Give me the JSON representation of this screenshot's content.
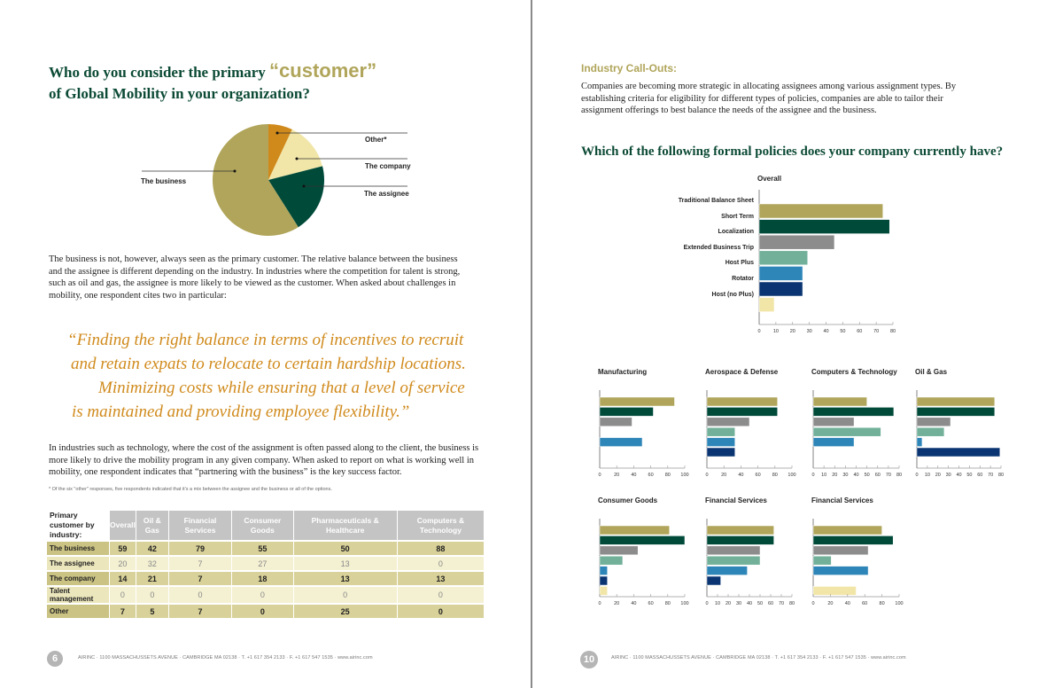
{
  "left_page": {
    "title_pre": "Who do you consider the primary",
    "title_emph": "“customer”",
    "title_post": "of Global Mobility in your organization?",
    "pie_labels": {
      "other": "Other*",
      "company": "The company",
      "assignee": "The assignee",
      "business": "The business"
    },
    "paragraph1": "The business is not, however, always seen as the primary customer. The relative balance between the business and the assignee is different depending on the industry. In industries where the competition for talent is strong, such as oil and gas, the assignee is more likely to be viewed as the customer. When asked about challenges in mobility, one respondent cites two in particular:",
    "quote_lines": [
      "“Finding the right balance in terms of incentives to recruit",
      "and retain expats to relocate to certain hardship locations.",
      "Minimizing costs while ensuring that a level of service",
      "is maintained and providing employee flexibility.”"
    ],
    "paragraph2": "In industries such as technology, where the cost of the assignment is often passed along to the client, the business is more likely to drive the mobility program in any given company. When asked to report on what is working well in mobility, one respondent indicates that “partnering with the business” is the key success factor.",
    "footnote": "* Of the six \"other\" responses, five respondents indicated that it's a mix between the assignee and the business or all of the options.",
    "table": {
      "headers": [
        "Primary customer by industry:",
        "Overall",
        "Oil & Gas",
        "Financial Services",
        "Consumer Goods",
        "Pharmaceuticals & Healthcare",
        "Computers & Technology"
      ],
      "rows": [
        [
          "The business",
          "59",
          "42",
          "79",
          "55",
          "50",
          "88"
        ],
        [
          "The assignee",
          "20",
          "32",
          "7",
          "27",
          "13",
          "0"
        ],
        [
          "The company",
          "14",
          "21",
          "7",
          "18",
          "13",
          "13"
        ],
        [
          "Talent management",
          "0",
          "0",
          "0",
          "0",
          "0",
          "0"
        ],
        [
          "Other",
          "7",
          "5",
          "7",
          "0",
          "25",
          "0"
        ]
      ]
    },
    "page_number": "6",
    "footer": "AIRINC · 1100 MASSACHUSSETS AVENUE · CAMBRIDGE MA 02138 · T. +1 617 354 2133 · F. +1 617 547 1535 · www.airinc.com"
  },
  "right_page": {
    "callout_heading": "Industry Call-Outs:",
    "callout_text": "Companies are becoming more strategic in allocating assignees among various assignment types. By establishing criteria for eligibility for different types of policies, companies are able to tailor their assignment offerings to best balance the needs of the assignee and the business.",
    "heading": "Which of the following formal policies does your company currently have?",
    "page_number": "10",
    "footer": "AIRINC · 1100 MASSACHUSSETS AVENUE · CAMBRIDGE MA 02138 · T. +1 617 354 2133 · F. +1 617 547 1535 · www.airinc.com"
  },
  "colors": [
    "#b0a55a",
    "#004a3a",
    "#8c8c8c",
    "#72b09a",
    "#2e86b8",
    "#0a3572",
    "#f1e6a8"
  ],
  "chart_data": [
    {
      "type": "pie",
      "title": "Primary customer",
      "categories": [
        "Other*",
        "The company",
        "The assignee",
        "The business"
      ],
      "values": [
        7,
        14,
        20,
        59
      ],
      "colors": [
        "#d08a1c",
        "#f1e6a8",
        "#004a3a",
        "#b0a55a"
      ]
    },
    {
      "type": "bar",
      "title": "Overall",
      "categories": [
        "Traditional Balance Sheet",
        "Short Term",
        "Localization",
        "Extended Business Trip",
        "Host Plus",
        "Rotator",
        "Host (no Plus)"
      ],
      "values": [
        74,
        78,
        45,
        29,
        26,
        26,
        9
      ],
      "xlim": [
        0,
        80
      ],
      "ticks": [
        0,
        10,
        20,
        30,
        40,
        50,
        60,
        70,
        80
      ]
    },
    {
      "type": "bar",
      "title": "Manufacturing",
      "values": [
        88,
        63,
        38,
        0,
        50,
        0,
        0
      ],
      "xlim": [
        0,
        100
      ],
      "ticks": [
        0,
        20,
        40,
        60,
        80,
        100
      ]
    },
    {
      "type": "bar",
      "title": "Aerospace & Defense",
      "values": [
        83,
        83,
        50,
        33,
        33,
        33,
        0
      ],
      "xlim": [
        0,
        100
      ],
      "ticks": [
        0,
        20,
        40,
        60,
        80,
        100
      ]
    },
    {
      "type": "bar",
      "title": "Computers & Technology",
      "values": [
        50,
        75,
        38,
        63,
        38,
        0,
        0
      ],
      "xlim": [
        0,
        80
      ],
      "ticks": [
        0,
        10,
        20,
        30,
        40,
        50,
        60,
        70,
        80
      ]
    },
    {
      "type": "bar",
      "title": "Oil & Gas",
      "values": [
        74,
        74,
        32,
        26,
        5,
        79,
        0
      ],
      "xlim": [
        0,
        80
      ],
      "ticks": [
        0,
        10,
        20,
        30,
        40,
        50,
        60,
        70,
        80
      ]
    },
    {
      "type": "bar",
      "title": "Consumer Goods",
      "values": [
        82,
        100,
        45,
        27,
        9,
        9,
        9
      ],
      "xlim": [
        0,
        100
      ],
      "ticks": [
        0,
        20,
        40,
        60,
        80,
        100
      ]
    },
    {
      "type": "bar",
      "title": "Financial Services",
      "values": [
        63,
        63,
        50,
        50,
        38,
        13,
        0
      ],
      "xlim": [
        0,
        80
      ],
      "ticks": [
        0,
        10,
        20,
        30,
        40,
        50,
        60,
        70,
        80
      ]
    },
    {
      "type": "bar",
      "title": "Financial Services",
      "values": [
        80,
        93,
        64,
        21,
        64,
        0,
        50
      ],
      "xlim": [
        0,
        100
      ],
      "ticks": [
        0,
        20,
        40,
        60,
        80,
        100
      ]
    }
  ]
}
